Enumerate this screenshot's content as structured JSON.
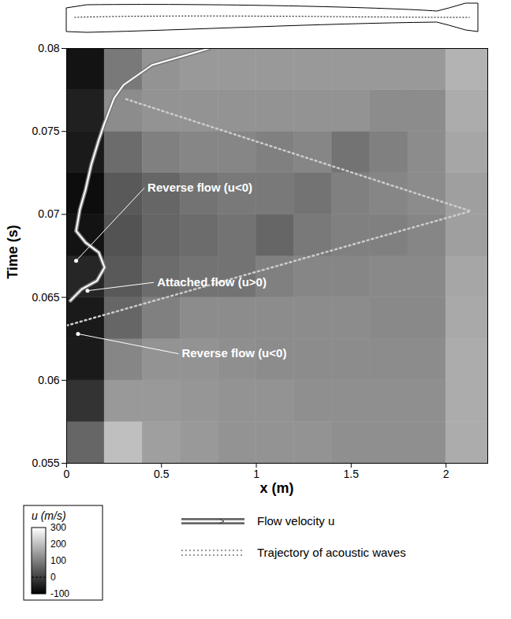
{
  "chart_data": {
    "type": "heatmap",
    "x_label": "x (m)",
    "y_label": "Time (s)",
    "xlim": [
      0,
      2.22
    ],
    "ylim": [
      0.055,
      0.08
    ],
    "xticks": [
      0,
      0.5,
      1,
      1.5,
      2
    ],
    "yticks": [
      0.055,
      0.06,
      0.065,
      0.07,
      0.075,
      0.08
    ],
    "heatmap": {
      "x_bins": [
        0,
        0.2,
        0.4,
        0.6,
        0.8,
        1.0,
        1.2,
        1.4,
        1.6,
        1.8,
        2.0,
        2.22
      ],
      "y_bins": [
        0.055,
        0.0575,
        0.06,
        0.0625,
        0.065,
        0.0675,
        0.07,
        0.0725,
        0.075,
        0.0775,
        0.08
      ],
      "cells": [
        [
          60,
          200,
          150,
          140,
          130,
          130,
          130,
          125,
          125,
          125,
          170
        ],
        [
          -20,
          140,
          140,
          135,
          130,
          130,
          125,
          125,
          125,
          125,
          170
        ],
        [
          -60,
          110,
          130,
          130,
          125,
          120,
          120,
          120,
          120,
          120,
          170
        ],
        [
          -60,
          60,
          100,
          120,
          120,
          120,
          120,
          120,
          115,
          115,
          165
        ],
        [
          -40,
          40,
          70,
          80,
          80,
          100,
          110,
          110,
          115,
          115,
          160
        ],
        [
          -70,
          30,
          60,
          70,
          80,
          60,
          90,
          100,
          100,
          110,
          150
        ],
        [
          -80,
          40,
          60,
          80,
          90,
          90,
          80,
          100,
          110,
          120,
          150
        ],
        [
          -60,
          70,
          100,
          110,
          110,
          100,
          110,
          80,
          100,
          120,
          160
        ],
        [
          -50,
          120,
          130,
          130,
          130,
          130,
          130,
          130,
          120,
          120,
          170
        ],
        [
          -70,
          90,
          130,
          140,
          140,
          140,
          140,
          140,
          140,
          140,
          180
        ]
      ],
      "colorbar": {
        "label": "u (m/s)",
        "range": [
          -100,
          300
        ],
        "ticks": [
          -100,
          0,
          100,
          200,
          300
        ]
      }
    },
    "series": [
      {
        "name": "Flow velocity u",
        "color": "white",
        "x": [
          0.02,
          0.08,
          0.16,
          0.2,
          0.17,
          0.1,
          0.05,
          0.07,
          0.1,
          0.13,
          0.17,
          0.2,
          0.25,
          0.3,
          0.45,
          0.6,
          0.75
        ],
        "values": [
          0.0648,
          0.0655,
          0.066,
          0.0668,
          0.0677,
          0.0683,
          0.069,
          0.0703,
          0.0715,
          0.073,
          0.0745,
          0.0755,
          0.077,
          0.0778,
          0.079,
          0.0795,
          0.08
        ]
      },
      {
        "name": "Trajectory of acoustic waves",
        "color": "#cccccc",
        "line_style": "dotted",
        "x": [
          0,
          2.13,
          0.3
        ],
        "values": [
          0.0633,
          0.0702,
          0.077
        ]
      }
    ],
    "annotations": [
      {
        "text": "Reverse flow (u<0)",
        "x": 0.41,
        "y": 0.0716,
        "point": [
          0.05,
          0.0672
        ]
      },
      {
        "text": "Attached flow (u>0)",
        "x": 0.46,
        "y": 0.0659,
        "point": [
          0.11,
          0.0654
        ]
      },
      {
        "text": "Reverse flow (u<0)",
        "x": 0.59,
        "y": 0.0616,
        "point": [
          0.06,
          0.0628
        ]
      }
    ],
    "legend": "bottom"
  }
}
